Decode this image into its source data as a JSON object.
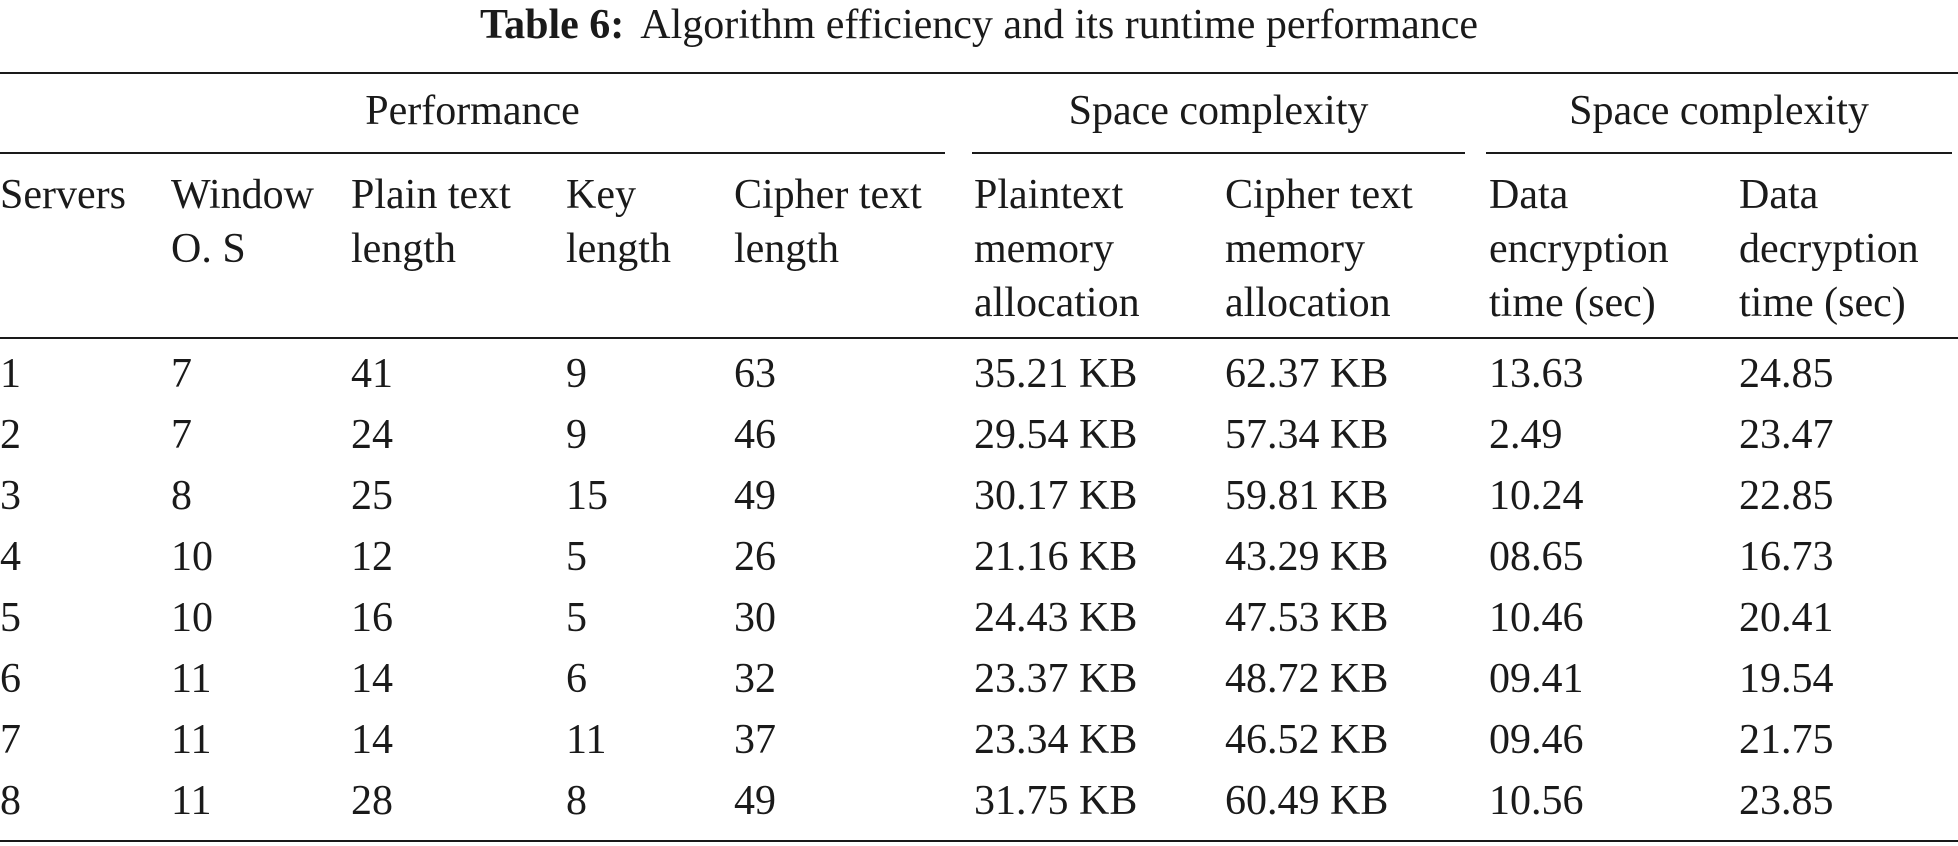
{
  "caption": {
    "label": "Table 6:",
    "text": "Algorithm efficiency and its runtime performance"
  },
  "table": {
    "groups": [
      {
        "label": "Performance"
      },
      {
        "label": "Space complexity"
      },
      {
        "label": "Space complexity"
      }
    ],
    "headers": [
      {
        "lines": [
          "Servers"
        ]
      },
      {
        "lines": [
          "Window",
          "O. S"
        ]
      },
      {
        "lines": [
          "Plain text",
          "length"
        ]
      },
      {
        "lines": [
          "Key",
          "length"
        ]
      },
      {
        "lines": [
          "Cipher text",
          "length"
        ]
      },
      {
        "lines": [
          "Plaintext",
          "memory",
          "allocation"
        ]
      },
      {
        "lines": [
          "Cipher text",
          "memory",
          "allocation"
        ]
      },
      {
        "lines": [
          "Data",
          "encryption",
          "time (sec)"
        ]
      },
      {
        "lines": [
          "Data",
          "decryption",
          "time (sec)"
        ]
      }
    ],
    "rows": [
      [
        "1",
        "7",
        "41",
        "9",
        "63",
        "35.21 KB",
        "62.37 KB",
        "13.63",
        "24.85"
      ],
      [
        "2",
        "7",
        "24",
        "9",
        "46",
        "29.54 KB",
        "57.34 KB",
        "2.49",
        "23.47"
      ],
      [
        "3",
        "8",
        "25",
        "15",
        "49",
        "30.17 KB",
        "59.81 KB",
        "10.24",
        "22.85"
      ],
      [
        "4",
        "10",
        "12",
        "5",
        "26",
        "21.16 KB",
        "43.29 KB",
        "08.65",
        "16.73"
      ],
      [
        "5",
        "10",
        "16",
        "5",
        "30",
        "24.43 KB",
        "47.53 KB",
        "10.46",
        "20.41"
      ],
      [
        "6",
        "11",
        "14",
        "6",
        "32",
        "23.37 KB",
        "48.72 KB",
        "09.41",
        "19.54"
      ],
      [
        "7",
        "11",
        "14",
        "11",
        "37",
        "23.34 KB",
        "46.52 KB",
        "09.46",
        "21.75"
      ],
      [
        "8",
        "11",
        "28",
        "8",
        "49",
        "31.75 KB",
        "60.49 KB",
        "10.56",
        "23.85"
      ]
    ]
  }
}
